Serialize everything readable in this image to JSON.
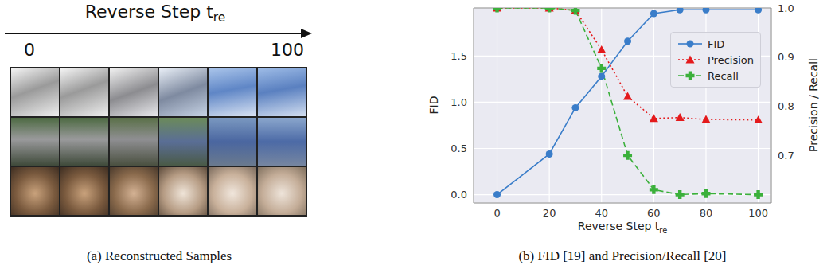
{
  "panel_a": {
    "header": {
      "text": "Reverse Step t",
      "subscript": "re"
    },
    "start_label": 0,
    "end_label": 100,
    "caption": "(a) Reconstructed Samples"
  },
  "chart_data": {
    "type": "line",
    "caption": "(b) FID [19] and Precision/Recall [20]",
    "xlabel": {
      "text": "Reverse Step t",
      "subscript": "re"
    },
    "ylabel": "FID",
    "y2label": "Precision / Recall",
    "x": [
      0,
      20,
      30,
      40,
      50,
      60,
      70,
      80,
      100
    ],
    "xlim": [
      -9,
      105
    ],
    "xticks": [
      0,
      20,
      40,
      60,
      80,
      100
    ],
    "ylim": [
      -0.09,
      2.02
    ],
    "yticks": [
      {
        "value": 0,
        "label": "0.0"
      },
      {
        "value": 0.5,
        "label": "0.5"
      },
      {
        "value": 1,
        "label": "1.0"
      },
      {
        "value": 1.5,
        "label": "1.5"
      }
    ],
    "y2lim": [
      0.603,
      1.0
    ],
    "y2ticks": [
      0.7,
      0.8,
      0.9,
      {
        "value": 1,
        "label": "1.0"
      }
    ],
    "grid": true,
    "legend": "upper right",
    "series": [
      {
        "name": "FID",
        "color": "#3a7dc9",
        "marker": "circle",
        "line_style": "solid",
        "values": [
          0,
          0.44,
          0.94,
          1.28,
          1.66,
          1.96,
          2.0,
          2.0,
          2.0
        ]
      },
      {
        "name": "Precision",
        "color": "#e41a1c",
        "marker": "triangle",
        "line_style": "dotted",
        "axis": "y2",
        "values": [
          1.0,
          1.0,
          0.995,
          0.915,
          0.82,
          0.775,
          0.777,
          0.773,
          0.772
        ]
      },
      {
        "name": "Recall",
        "color": "#3bb03b",
        "marker": "plus",
        "line_style": "dashed",
        "axis": "y2",
        "values": [
          1.0,
          1.0,
          0.995,
          0.877,
          0.7,
          0.63,
          0.62,
          0.622,
          0.62
        ]
      }
    ]
  }
}
